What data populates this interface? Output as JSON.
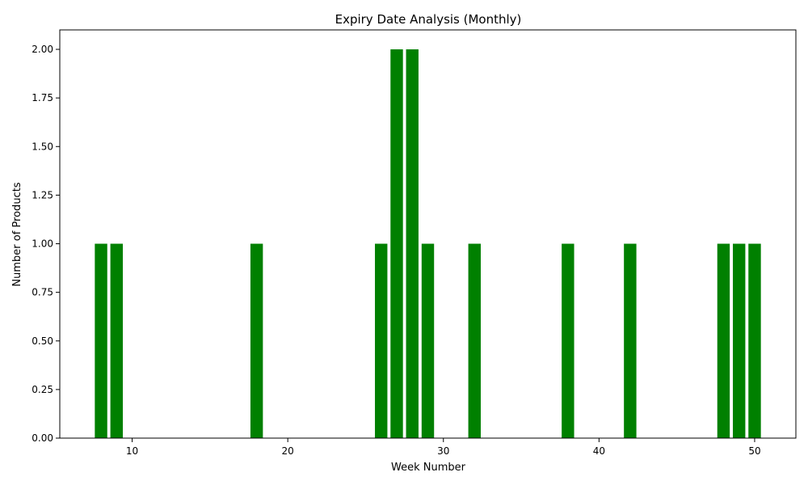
{
  "chart_data": {
    "type": "bar",
    "title": "Expiry Date Analysis (Monthly)",
    "xlabel": "Week Number",
    "ylabel": "Number of Products",
    "x": [
      8,
      9,
      18,
      26,
      27,
      28,
      29,
      32,
      38,
      42,
      48,
      49,
      50
    ],
    "values": [
      1,
      1,
      1,
      1,
      2,
      2,
      1,
      1,
      1,
      1,
      1,
      1,
      1
    ],
    "xlim": [
      5.35,
      52.65
    ],
    "ylim": [
      0,
      2.1
    ],
    "xticks": [
      10,
      20,
      30,
      40,
      50
    ],
    "xtick_labels": [
      "10",
      "20",
      "30",
      "40",
      "50"
    ],
    "yticks": [
      0,
      0.25,
      0.5,
      0.75,
      1.0,
      1.25,
      1.5,
      1.75,
      2.0
    ],
    "ytick_labels": [
      "0.00",
      "0.25",
      "0.50",
      "0.75",
      "1.00",
      "1.25",
      "1.50",
      "1.75",
      "2.00"
    ],
    "bar_color": "#008000",
    "grid": false,
    "legend": "none"
  }
}
